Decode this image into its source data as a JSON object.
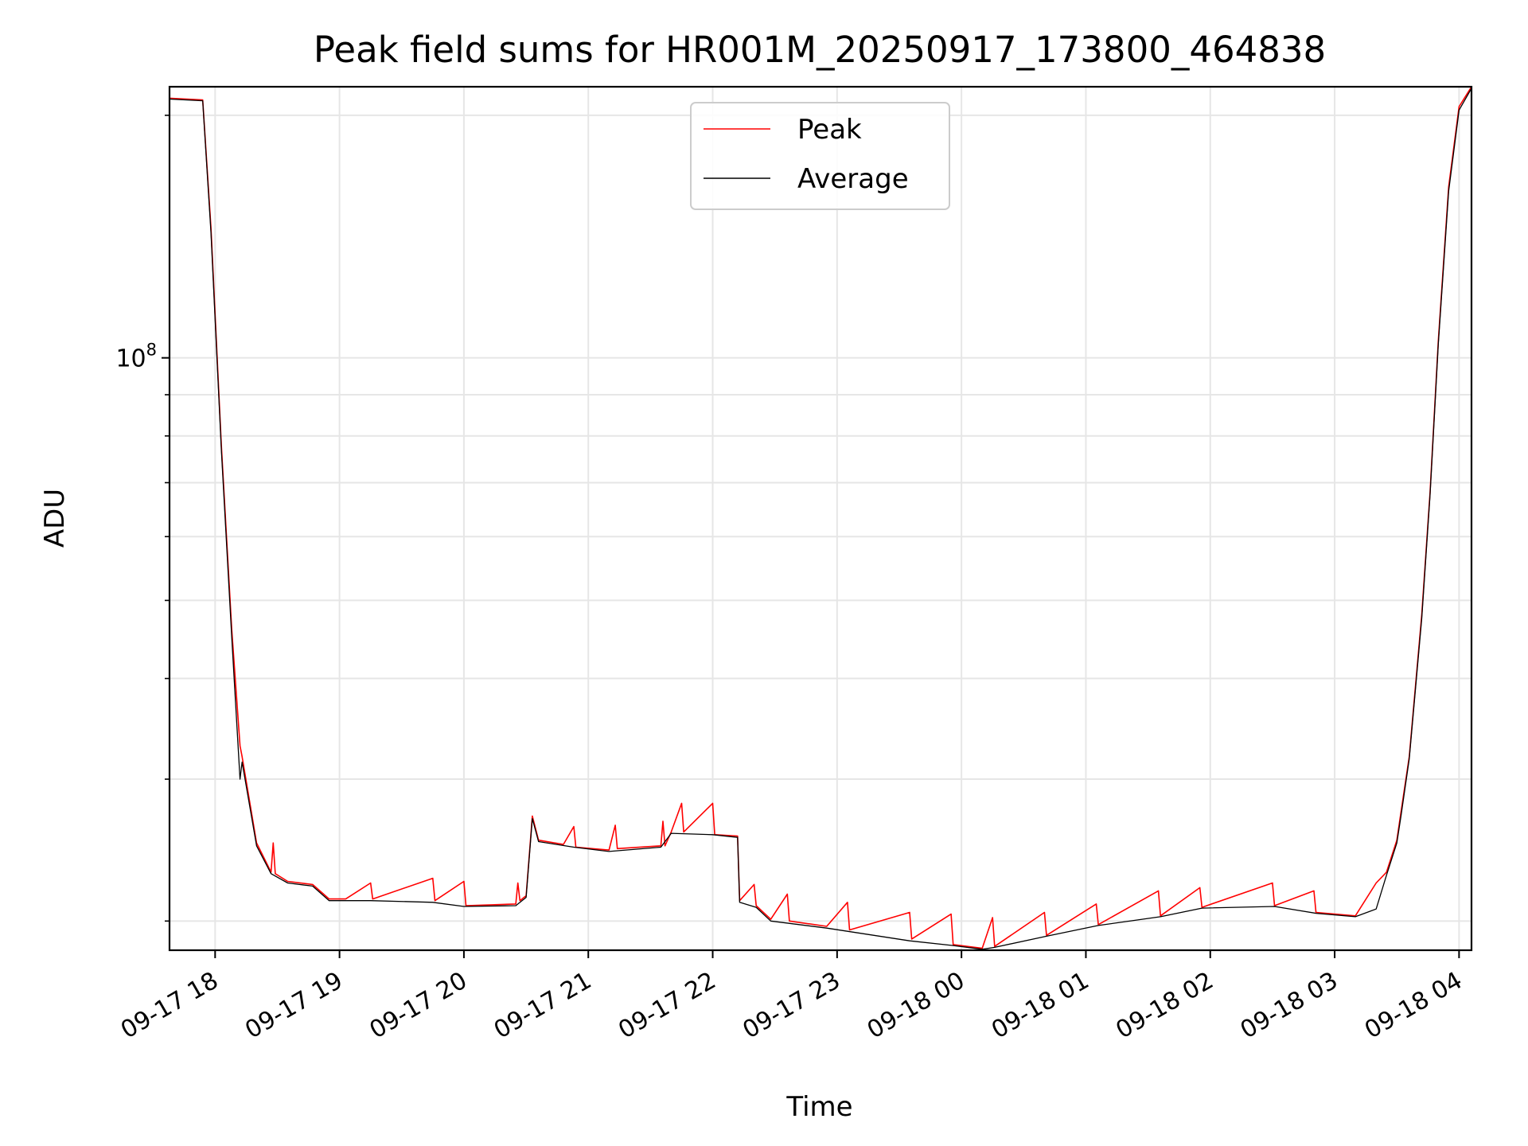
{
  "chart_data": {
    "type": "line",
    "title": "Peak field sums for HR001M_20250917_173800_464838",
    "xlabel": "Time",
    "ylabel": "ADU",
    "yscale": "log",
    "grid": true,
    "legend_position": "top-center",
    "x_range": [
      "2025-09-17 17:38",
      "2025-09-18 04:06"
    ],
    "y_range": [
      18400000,
      217000000
    ],
    "y_major_ticks": [
      {
        "value": 100000000,
        "label_base": "10",
        "label_exp": "8"
      }
    ],
    "y_minor_ticks": [
      20000000,
      30000000,
      40000000,
      50000000,
      60000000,
      70000000,
      80000000,
      90000000,
      200000000
    ],
    "x_ticks": [
      {
        "value": "2025-09-17 18:00",
        "label": "09-17 18"
      },
      {
        "value": "2025-09-17 19:00",
        "label": "09-17 19"
      },
      {
        "value": "2025-09-17 20:00",
        "label": "09-17 20"
      },
      {
        "value": "2025-09-17 21:00",
        "label": "09-17 21"
      },
      {
        "value": "2025-09-17 22:00",
        "label": "09-17 22"
      },
      {
        "value": "2025-09-17 23:00",
        "label": "09-17 23"
      },
      {
        "value": "2025-09-18 00:00",
        "label": "09-18 00"
      },
      {
        "value": "2025-09-18 01:00",
        "label": "09-18 01"
      },
      {
        "value": "2025-09-18 02:00",
        "label": "09-18 02"
      },
      {
        "value": "2025-09-18 03:00",
        "label": "09-18 03"
      },
      {
        "value": "2025-09-18 04:00",
        "label": "09-18 04"
      }
    ],
    "series": [
      {
        "name": "Peak",
        "color": "#ff0000",
        "points": [
          [
            "2025-09-17 17:38",
            210000000
          ],
          [
            "2025-09-17 17:54",
            209000000
          ],
          [
            "2025-09-17 17:58",
            145000000
          ],
          [
            "2025-09-17 18:03",
            78000000
          ],
          [
            "2025-09-17 18:08",
            46000000
          ],
          [
            "2025-09-17 18:12",
            33000000
          ],
          [
            "2025-09-17 18:13",
            32000000
          ],
          [
            "2025-09-17 18:20",
            25000000
          ],
          [
            "2025-09-17 18:27",
            23000000
          ],
          [
            "2025-09-17 18:28",
            25000000
          ],
          [
            "2025-09-17 18:29",
            22900000
          ],
          [
            "2025-09-17 18:35",
            22400000
          ],
          [
            "2025-09-17 18:47",
            22200000
          ],
          [
            "2025-09-17 18:55",
            21300000
          ],
          [
            "2025-09-17 19:03",
            21300000
          ],
          [
            "2025-09-17 19:15",
            22300000
          ],
          [
            "2025-09-17 19:16",
            21300000
          ],
          [
            "2025-09-17 19:45",
            22600000
          ],
          [
            "2025-09-17 19:46",
            21200000
          ],
          [
            "2025-09-17 20:00",
            22400000
          ],
          [
            "2025-09-17 20:01",
            20900000
          ],
          [
            "2025-09-17 20:25",
            21000000
          ],
          [
            "2025-09-17 20:26",
            22300000
          ],
          [
            "2025-09-17 20:27",
            21200000
          ],
          [
            "2025-09-17 20:30",
            21500000
          ],
          [
            "2025-09-17 20:33",
            27000000
          ],
          [
            "2025-09-17 20:36",
            25200000
          ],
          [
            "2025-09-17 20:48",
            24900000
          ],
          [
            "2025-09-17 20:53",
            26200000
          ],
          [
            "2025-09-17 20:54",
            24700000
          ],
          [
            "2025-09-17 21:10",
            24500000
          ],
          [
            "2025-09-17 21:13",
            26300000
          ],
          [
            "2025-09-17 21:14",
            24600000
          ],
          [
            "2025-09-17 21:35",
            24800000
          ],
          [
            "2025-09-17 21:36",
            26600000
          ],
          [
            "2025-09-17 21:37",
            24800000
          ],
          [
            "2025-09-17 21:40",
            25800000
          ],
          [
            "2025-09-17 21:45",
            28000000
          ],
          [
            "2025-09-17 21:46",
            25800000
          ],
          [
            "2025-09-17 22:00",
            28000000
          ],
          [
            "2025-09-17 22:01",
            25600000
          ],
          [
            "2025-09-17 22:12",
            25500000
          ],
          [
            "2025-09-17 22:13",
            21200000
          ],
          [
            "2025-09-17 22:20",
            22200000
          ],
          [
            "2025-09-17 22:21",
            20900000
          ],
          [
            "2025-09-17 22:28",
            20100000
          ],
          [
            "2025-09-17 22:36",
            21600000
          ],
          [
            "2025-09-17 22:37",
            20000000
          ],
          [
            "2025-09-17 22:55",
            19700000
          ],
          [
            "2025-09-17 23:05",
            21100000
          ],
          [
            "2025-09-17 23:06",
            19500000
          ],
          [
            "2025-09-17 23:35",
            20500000
          ],
          [
            "2025-09-17 23:36",
            19000000
          ],
          [
            "2025-09-17 23:55",
            20400000
          ],
          [
            "2025-09-17 23:56",
            18700000
          ],
          [
            "2025-09-18 00:10",
            18500000
          ],
          [
            "2025-09-18 00:15",
            20200000
          ],
          [
            "2025-09-18 00:16",
            18600000
          ],
          [
            "2025-09-18 00:40",
            20500000
          ],
          [
            "2025-09-18 00:41",
            19200000
          ],
          [
            "2025-09-18 01:05",
            21000000
          ],
          [
            "2025-09-18 01:06",
            19800000
          ],
          [
            "2025-09-18 01:35",
            21800000
          ],
          [
            "2025-09-18 01:36",
            20300000
          ],
          [
            "2025-09-18 01:55",
            22000000
          ],
          [
            "2025-09-18 01:56",
            20800000
          ],
          [
            "2025-09-18 02:30",
            22300000
          ],
          [
            "2025-09-18 02:31",
            20900000
          ],
          [
            "2025-09-18 02:50",
            21800000
          ],
          [
            "2025-09-18 02:51",
            20500000
          ],
          [
            "2025-09-18 03:10",
            20300000
          ],
          [
            "2025-09-18 03:20",
            22300000
          ],
          [
            "2025-09-18 03:25",
            23000000
          ],
          [
            "2025-09-18 03:30",
            25200000
          ],
          [
            "2025-09-18 03:32",
            27300000
          ],
          [
            "2025-09-18 03:36",
            32000000
          ],
          [
            "2025-09-18 03:42",
            48000000
          ],
          [
            "2025-09-18 03:46",
            68000000
          ],
          [
            "2025-09-18 03:50",
            105000000
          ],
          [
            "2025-09-18 03:55",
            163000000
          ],
          [
            "2025-09-18 04:00",
            205000000
          ],
          [
            "2025-09-18 04:06",
            217000000
          ]
        ]
      },
      {
        "name": "Average",
        "color": "#000000",
        "points": [
          [
            "2025-09-17 17:38",
            209500000
          ],
          [
            "2025-09-17 17:54",
            208500000
          ],
          [
            "2025-09-17 17:58",
            143000000
          ],
          [
            "2025-09-17 18:03",
            77000000
          ],
          [
            "2025-09-17 18:08",
            45000000
          ],
          [
            "2025-09-17 18:12",
            30000000
          ],
          [
            "2025-09-17 18:13",
            31500000
          ],
          [
            "2025-09-17 18:20",
            24800000
          ],
          [
            "2025-09-17 18:27",
            22900000
          ],
          [
            "2025-09-17 18:35",
            22300000
          ],
          [
            "2025-09-17 18:47",
            22100000
          ],
          [
            "2025-09-17 18:55",
            21200000
          ],
          [
            "2025-09-17 19:15",
            21200000
          ],
          [
            "2025-09-17 19:45",
            21100000
          ],
          [
            "2025-09-17 20:00",
            20850000
          ],
          [
            "2025-09-17 20:25",
            20900000
          ],
          [
            "2025-09-17 20:30",
            21400000
          ],
          [
            "2025-09-17 20:33",
            26800000
          ],
          [
            "2025-09-17 20:36",
            25100000
          ],
          [
            "2025-09-17 20:53",
            24700000
          ],
          [
            "2025-09-17 21:10",
            24400000
          ],
          [
            "2025-09-17 21:35",
            24700000
          ],
          [
            "2025-09-17 21:40",
            25700000
          ],
          [
            "2025-09-17 22:00",
            25600000
          ],
          [
            "2025-09-17 22:12",
            25400000
          ],
          [
            "2025-09-17 22:13",
            21100000
          ],
          [
            "2025-09-17 22:21",
            20800000
          ],
          [
            "2025-09-17 22:28",
            20000000
          ],
          [
            "2025-09-17 22:55",
            19600000
          ],
          [
            "2025-09-17 23:35",
            18900000
          ],
          [
            "2025-09-17 23:56",
            18650000
          ],
          [
            "2025-09-18 00:10",
            18450000
          ],
          [
            "2025-09-18 00:16",
            18550000
          ],
          [
            "2025-09-18 00:41",
            19150000
          ],
          [
            "2025-09-18 01:06",
            19750000
          ],
          [
            "2025-09-18 01:36",
            20250000
          ],
          [
            "2025-09-18 01:56",
            20750000
          ],
          [
            "2025-09-18 02:31",
            20850000
          ],
          [
            "2025-09-18 02:51",
            20450000
          ],
          [
            "2025-09-18 03:10",
            20250000
          ],
          [
            "2025-09-18 03:20",
            20700000
          ],
          [
            "2025-09-18 03:25",
            22800000
          ],
          [
            "2025-09-18 03:30",
            25000000
          ],
          [
            "2025-09-18 03:32",
            27000000
          ],
          [
            "2025-09-18 03:36",
            31800000
          ],
          [
            "2025-09-18 03:42",
            47500000
          ],
          [
            "2025-09-18 03:46",
            67500000
          ],
          [
            "2025-09-18 03:50",
            104000000
          ],
          [
            "2025-09-18 03:55",
            161000000
          ],
          [
            "2025-09-18 04:00",
            203000000
          ],
          [
            "2025-09-18 04:06",
            216000000
          ]
        ]
      }
    ]
  }
}
